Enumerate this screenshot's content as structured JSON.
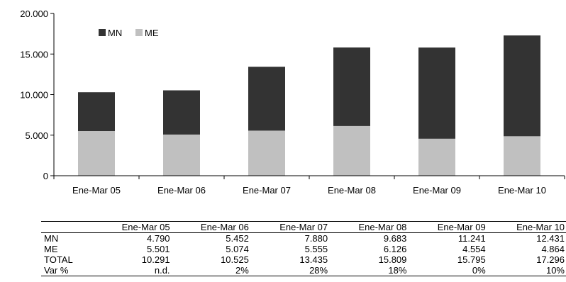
{
  "chart_data": {
    "type": "bar",
    "stacked": true,
    "categories": [
      "Ene-Mar 05",
      "Ene-Mar 06",
      "Ene-Mar 07",
      "Ene-Mar 08",
      "Ene-Mar 09",
      "Ene-Mar 10"
    ],
    "series": [
      {
        "name": "ME",
        "values": [
          5501,
          5074,
          5555,
          6126,
          4554,
          4864
        ],
        "color": "#c0c0c0"
      },
      {
        "name": "MN",
        "values": [
          4790,
          5452,
          7880,
          9683,
          11241,
          12431
        ],
        "color": "#333333"
      }
    ],
    "legend_order": [
      "MN",
      "ME"
    ],
    "legend_position": "top-left",
    "ylim": [
      0,
      20000
    ],
    "yticks": [
      0,
      5000,
      10000,
      15000,
      20000
    ],
    "ytick_labels": [
      "0",
      "5.000",
      "10.000",
      "15.000",
      "20.000"
    ],
    "grid": false
  },
  "table": {
    "columns": [
      "Ene-Mar 05",
      "Ene-Mar 06",
      "Ene-Mar 07",
      "Ene-Mar 08",
      "Ene-Mar 09",
      "Ene-Mar 10"
    ],
    "rows": [
      {
        "label": "MN",
        "values": [
          "4.790",
          "5.452",
          "7.880",
          "9.683",
          "11.241",
          "12.431"
        ]
      },
      {
        "label": "ME",
        "values": [
          "5.501",
          "5.074",
          "5.555",
          "6.126",
          "4.554",
          "4.864"
        ]
      },
      {
        "label": "TOTAL",
        "values": [
          "10.291",
          "10.525",
          "13.435",
          "15.809",
          "15.795",
          "17.296"
        ]
      },
      {
        "label": "Var %",
        "values": [
          "n.d.",
          "2%",
          "28%",
          "18%",
          "0%",
          "10%"
        ]
      }
    ]
  }
}
